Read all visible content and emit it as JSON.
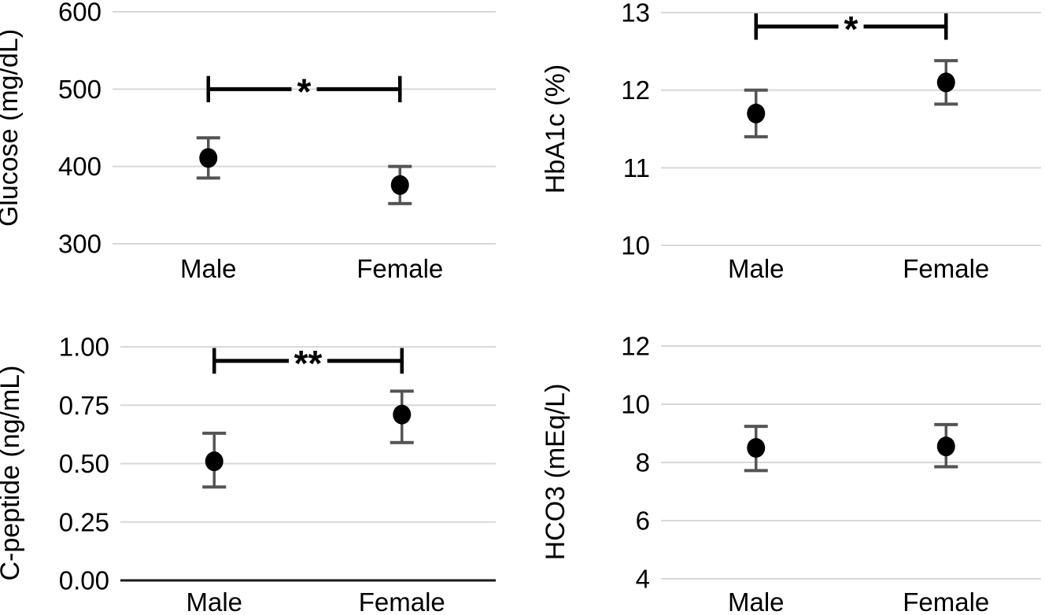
{
  "figure": {
    "description": "Four-panel figure comparing laboratory values between Male and Female groups, shown as mean points with error bars and significance brackets",
    "background": "#ffffff"
  },
  "colors": {
    "point": "#000000",
    "error_bar": "#545454",
    "grid_line": "#d8d8d8",
    "baseline": "#1a1a1a",
    "text": "#000000",
    "bracket": "#000000"
  },
  "chart_data": [
    {
      "type": "scatter",
      "id": "glucose",
      "ylabel": "Glucose (mg/dL)",
      "categories": [
        "Male",
        "Female"
      ],
      "points": [
        {
          "category": "Male",
          "mean": 411,
          "lo": 385,
          "hi": 437
        },
        {
          "category": "Female",
          "mean": 376,
          "lo": 352,
          "hi": 400
        }
      ],
      "ylim": [
        300,
        600
      ],
      "yticks": [
        300,
        400,
        500,
        600
      ],
      "ytick_labels": [
        "300",
        "400",
        "500",
        "600"
      ],
      "grid": true,
      "dark_baseline": false,
      "significance": {
        "label": "*",
        "y": 500,
        "cap_half": 17
      }
    },
    {
      "type": "scatter",
      "id": "hba1c",
      "ylabel": "HbA1c (%)",
      "categories": [
        "Male",
        "Female"
      ],
      "points": [
        {
          "category": "Male",
          "mean": 11.7,
          "lo": 11.4,
          "hi": 12.0
        },
        {
          "category": "Female",
          "mean": 12.1,
          "lo": 11.82,
          "hi": 12.38
        }
      ],
      "ylim": [
        10,
        13
      ],
      "yticks": [
        10,
        11,
        12,
        13
      ],
      "ytick_labels": [
        "10",
        "11",
        "12",
        "13"
      ],
      "grid": true,
      "dark_baseline": false,
      "significance": {
        "label": "*",
        "y": 12.82,
        "cap_half": 0.17
      }
    },
    {
      "type": "scatter",
      "id": "c-peptide",
      "ylabel": "C-peptide (ng/mL)",
      "categories": [
        "Male",
        "Female"
      ],
      "points": [
        {
          "category": "Male",
          "mean": 0.51,
          "lo": 0.4,
          "hi": 0.63
        },
        {
          "category": "Female",
          "mean": 0.71,
          "lo": 0.59,
          "hi": 0.81
        }
      ],
      "ylim": [
        0.0,
        1.0
      ],
      "yticks": [
        0.0,
        0.25,
        0.5,
        0.75,
        1.0
      ],
      "ytick_labels": [
        "0.00",
        "0.25",
        "0.50",
        "0.75",
        "1.00"
      ],
      "grid": true,
      "dark_baseline": true,
      "significance": {
        "label": "**",
        "y": 0.94,
        "cap_half": 0.055
      }
    },
    {
      "type": "scatter",
      "id": "hco3",
      "ylabel": "HCO3 (mEq/L)",
      "categories": [
        "Male",
        "Female"
      ],
      "points": [
        {
          "category": "Male",
          "mean": 8.5,
          "lo": 7.72,
          "hi": 9.24
        },
        {
          "category": "Female",
          "mean": 8.55,
          "lo": 7.85,
          "hi": 9.3
        }
      ],
      "ylim": [
        4,
        12
      ],
      "yticks": [
        4,
        6,
        8,
        10,
        12
      ],
      "ytick_labels": [
        "4",
        "6",
        "8",
        "10",
        "12"
      ],
      "grid": true,
      "dark_baseline": false,
      "significance": null
    }
  ]
}
